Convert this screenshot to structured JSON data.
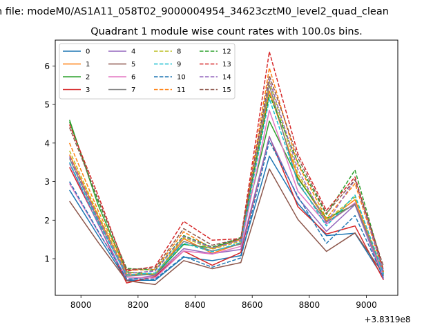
{
  "chart_data": {
    "type": "line",
    "suptitle": "n file: modeM0/AS1A11_058T02_9000004954_34623cztM0_level2_quad_clean",
    "title": "Quadrant 1 module wise count rates with 100.0s bins.",
    "xlabel": "",
    "ylabel": "",
    "x_offset_label": "+3.8319e8",
    "xlim": [
      7910,
      9110
    ],
    "ylim": [
      0.05,
      6.67
    ],
    "xticks": [
      8000,
      8200,
      8400,
      8600,
      8800,
      9000
    ],
    "xtick_labels": [
      "8000",
      "8200",
      "8400",
      "8600",
      "8800",
      "9000"
    ],
    "yticks": [
      1,
      2,
      3,
      4,
      5,
      6
    ],
    "ytick_labels": [
      "1",
      "2",
      "3",
      "4",
      "5",
      "6"
    ],
    "legend_position": "upper-left",
    "legend_columns": 4,
    "x": [
      7960,
      8060,
      8160,
      8260,
      8360,
      8460,
      8560,
      8660,
      8760,
      8860,
      8960,
      9060
    ],
    "series": [
      {
        "name": "0",
        "color": "#1f77b4",
        "style": "solid",
        "values": [
          2.78,
          1.6,
          0.44,
          0.44,
          1.04,
          0.95,
          1.08,
          3.66,
          2.43,
          1.6,
          1.66,
          0.5
        ]
      },
      {
        "name": "1",
        "color": "#ff7f0e",
        "style": "solid",
        "values": [
          3.7,
          2.1,
          0.6,
          0.58,
          1.52,
          1.14,
          1.4,
          5.35,
          3.12,
          1.98,
          2.53,
          0.58
        ]
      },
      {
        "name": "2",
        "color": "#2ca02c",
        "style": "solid",
        "values": [
          4.6,
          2.4,
          0.66,
          0.58,
          1.37,
          1.28,
          1.52,
          4.57,
          3.08,
          2.05,
          2.4,
          0.56
        ]
      },
      {
        "name": "3",
        "color": "#d62728",
        "style": "solid",
        "values": [
          3.37,
          1.92,
          0.37,
          0.54,
          1.2,
          0.83,
          1.16,
          4.17,
          2.35,
          1.64,
          1.85,
          0.45
        ]
      },
      {
        "name": "4",
        "color": "#9467bd",
        "style": "solid",
        "values": [
          3.47,
          1.9,
          0.45,
          0.57,
          1.26,
          1.13,
          1.24,
          4.16,
          2.58,
          1.71,
          2.4,
          0.47
        ]
      },
      {
        "name": "5",
        "color": "#8c564b",
        "style": "solid",
        "values": [
          2.49,
          1.43,
          0.43,
          0.33,
          0.95,
          0.74,
          0.9,
          3.33,
          2.02,
          1.19,
          1.67,
          0.6
        ]
      },
      {
        "name": "6",
        "color": "#e377c2",
        "style": "solid",
        "values": [
          2.95,
          1.7,
          0.52,
          0.5,
          1.2,
          1.12,
          1.32,
          4.85,
          2.75,
          1.9,
          2.45,
          0.55
        ]
      },
      {
        "name": "7",
        "color": "#7f7f7f",
        "style": "solid",
        "values": [
          3.6,
          2.0,
          0.55,
          0.6,
          1.45,
          1.2,
          1.38,
          5.5,
          2.95,
          1.95,
          2.42,
          0.62
        ]
      },
      {
        "name": "8",
        "color": "#bcbd22",
        "style": "dashed",
        "values": [
          3.8,
          2.15,
          0.65,
          0.6,
          1.55,
          1.25,
          1.45,
          5.6,
          3.2,
          2.0,
          2.6,
          0.65
        ]
      },
      {
        "name": "9",
        "color": "#17becf",
        "style": "dashed",
        "values": [
          3.5,
          1.95,
          0.58,
          0.63,
          1.4,
          1.18,
          1.42,
          5.15,
          3.0,
          1.85,
          2.65,
          0.6
        ]
      },
      {
        "name": "10",
        "color": "#1f77b4",
        "style": "dashed",
        "values": [
          3.0,
          1.72,
          0.48,
          0.47,
          1.06,
          0.78,
          1.02,
          4.05,
          2.62,
          1.4,
          2.12,
          0.52
        ]
      },
      {
        "name": "11",
        "color": "#ff7f0e",
        "style": "dashed",
        "values": [
          4.0,
          2.25,
          0.7,
          0.72,
          1.7,
          1.26,
          1.5,
          5.95,
          3.45,
          2.05,
          2.95,
          0.66
        ]
      },
      {
        "name": "12",
        "color": "#2ca02c",
        "style": "dashed",
        "values": [
          4.55,
          2.5,
          0.75,
          0.7,
          1.6,
          1.3,
          1.55,
          5.25,
          3.5,
          2.15,
          3.3,
          0.7
        ]
      },
      {
        "name": "13",
        "color": "#d62728",
        "style": "dashed",
        "values": [
          4.48,
          2.65,
          0.68,
          0.8,
          1.97,
          1.48,
          1.52,
          6.37,
          3.72,
          2.25,
          3.12,
          0.7
        ]
      },
      {
        "name": "14",
        "color": "#9467bd",
        "style": "dashed",
        "values": [
          3.65,
          2.05,
          0.62,
          0.68,
          1.58,
          1.28,
          1.48,
          5.65,
          3.32,
          1.92,
          3.05,
          0.66
        ]
      },
      {
        "name": "15",
        "color": "#8c564b",
        "style": "dashed",
        "values": [
          4.4,
          2.55,
          0.72,
          0.76,
          1.78,
          1.35,
          1.52,
          5.75,
          3.62,
          2.18,
          3.05,
          0.8
        ]
      }
    ]
  }
}
